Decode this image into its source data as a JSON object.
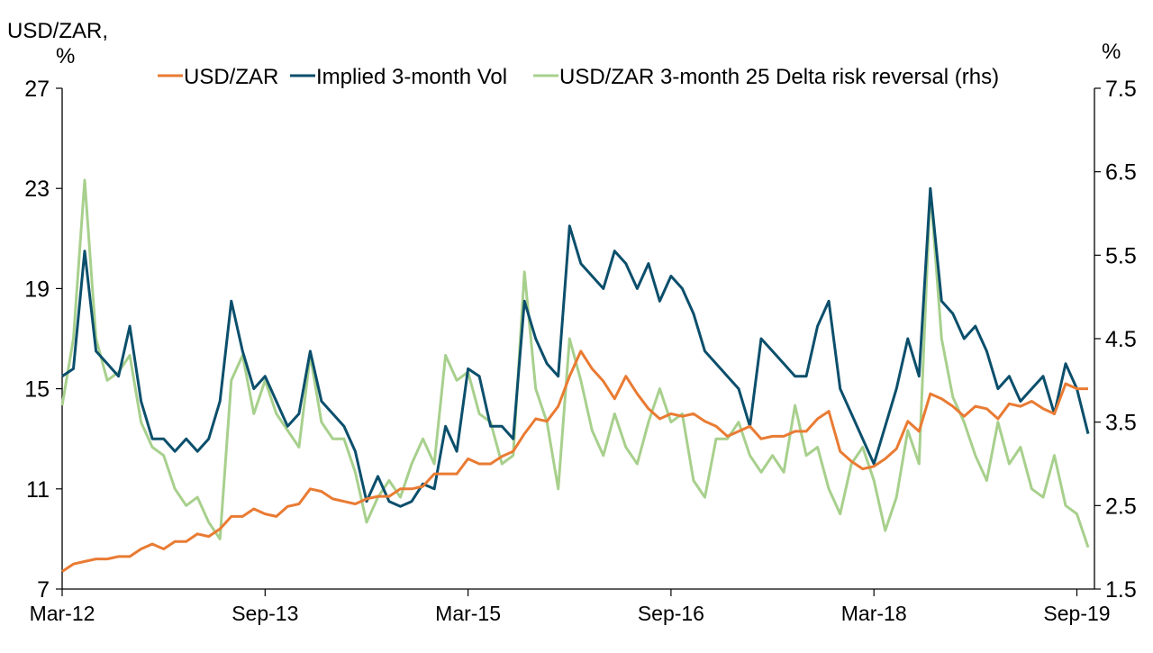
{
  "chart_data": {
    "type": "line",
    "title": "",
    "ylabel_left": "USD/ZAR, %",
    "ylabel_left_line1": "USD/ZAR,",
    "ylabel_left_line2": "%",
    "ylabel_right": "%",
    "ylim_left": [
      7,
      27
    ],
    "ylim_right": [
      1.5,
      7.5
    ],
    "yticks_left": [
      "27",
      "23",
      "19",
      "15",
      "11",
      "7"
    ],
    "yticks_right": [
      "7.5",
      "6.5",
      "5.5",
      "4.5",
      "3.5",
      "2.5",
      "1.5"
    ],
    "xticks": [
      "Mar-12",
      "Sep-13",
      "Mar-15",
      "Sep-16",
      "Mar-18",
      "Sep-19"
    ],
    "xrange": [
      "2012-03",
      "2019-10"
    ],
    "grid": false,
    "legend_position": "top",
    "x_start": "2012-03",
    "x_frequency": "monthly",
    "series": [
      {
        "name": "USD/ZAR",
        "axis": "left",
        "color": "#E97B33",
        "values": [
          7.7,
          8.0,
          8.1,
          8.2,
          8.2,
          8.3,
          8.3,
          8.6,
          8.8,
          8.6,
          8.9,
          8.9,
          9.2,
          9.1,
          9.4,
          9.9,
          9.9,
          10.2,
          10.0,
          9.9,
          10.3,
          10.4,
          11.0,
          10.9,
          10.6,
          10.5,
          10.4,
          10.6,
          10.7,
          10.7,
          11.0,
          11.0,
          11.1,
          11.6,
          11.6,
          11.6,
          12.2,
          12.0,
          12.0,
          12.3,
          12.5,
          13.2,
          13.8,
          13.7,
          14.3,
          15.5,
          16.5,
          15.8,
          15.3,
          14.6,
          15.5,
          14.8,
          14.2,
          13.8,
          14.0,
          13.9,
          14.0,
          13.7,
          13.5,
          13.1,
          13.3,
          13.5,
          13.0,
          13.1,
          13.1,
          13.3,
          13.3,
          13.8,
          14.1,
          12.5,
          12.1,
          11.8,
          11.9,
          12.2,
          12.6,
          13.7,
          13.3,
          14.8,
          14.6,
          14.3,
          13.9,
          14.3,
          14.2,
          13.8,
          14.4,
          14.3,
          14.5,
          14.2,
          14.0,
          15.2,
          15.0,
          15.0
        ]
      },
      {
        "name": "Implied 3-month Vol",
        "axis": "left",
        "color": "#0B4F6C",
        "values": [
          15.5,
          15.8,
          20.5,
          16.5,
          16.0,
          15.5,
          17.5,
          14.5,
          13.0,
          13.0,
          12.5,
          13.0,
          12.5,
          13.0,
          14.5,
          18.5,
          16.5,
          15.0,
          15.5,
          14.5,
          13.5,
          14.0,
          16.5,
          14.5,
          14.0,
          13.5,
          12.5,
          10.5,
          11.5,
          10.5,
          10.3,
          10.5,
          11.2,
          11.0,
          13.5,
          12.5,
          15.8,
          15.5,
          13.5,
          13.5,
          13.0,
          18.5,
          17.0,
          16.0,
          15.5,
          21.5,
          20.0,
          19.5,
          19.0,
          20.5,
          20.0,
          19.0,
          20.0,
          18.5,
          19.5,
          19.0,
          18.0,
          16.5,
          16.0,
          15.5,
          15.0,
          13.5,
          17.0,
          16.5,
          16.0,
          15.5,
          15.5,
          17.5,
          18.5,
          15.0,
          14.0,
          13.0,
          12.0,
          13.5,
          15.0,
          17.0,
          15.5,
          23.0,
          18.5,
          18.0,
          17.0,
          17.5,
          16.5,
          15.0,
          15.5,
          14.5,
          15.0,
          15.5,
          14.0,
          16.0,
          15.0,
          13.2
        ]
      },
      {
        "name": "USD/ZAR 3-month 25 Delta risk reversal (rhs)",
        "axis": "right",
        "color": "#A8D08D",
        "values": [
          3.7,
          4.5,
          6.4,
          4.5,
          4.0,
          4.1,
          4.3,
          3.5,
          3.2,
          3.1,
          2.7,
          2.5,
          2.6,
          2.3,
          2.1,
          4.0,
          4.3,
          3.6,
          4.0,
          3.6,
          3.4,
          3.2,
          4.3,
          3.5,
          3.3,
          3.3,
          2.9,
          2.3,
          2.6,
          2.8,
          2.6,
          3.0,
          3.3,
          3.0,
          4.3,
          4.0,
          4.1,
          3.6,
          3.5,
          3.0,
          3.1,
          5.3,
          3.9,
          3.5,
          2.7,
          4.5,
          4.0,
          3.4,
          3.1,
          3.6,
          3.2,
          3.0,
          3.5,
          3.9,
          3.5,
          3.6,
          2.8,
          2.6,
          3.3,
          3.3,
          3.5,
          3.1,
          2.9,
          3.1,
          2.9,
          3.7,
          3.1,
          3.2,
          2.7,
          2.4,
          3.0,
          3.2,
          2.8,
          2.2,
          2.6,
          3.4,
          3.0,
          6.3,
          4.5,
          3.8,
          3.5,
          3.1,
          2.8,
          3.5,
          3.0,
          3.2,
          2.7,
          2.6,
          3.1,
          2.5,
          2.4,
          2.0
        ]
      }
    ]
  }
}
